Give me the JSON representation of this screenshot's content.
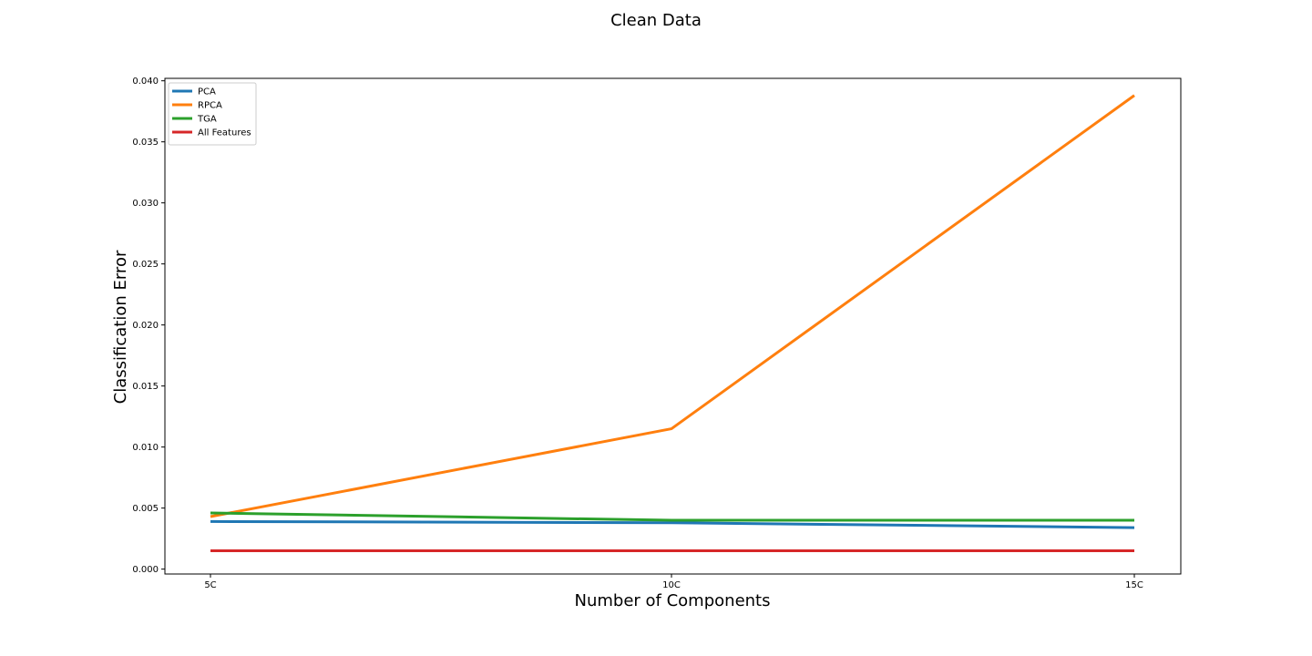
{
  "chart_data": {
    "type": "line",
    "title": "Clean Data",
    "xlabel": "Number of Components",
    "ylabel": "Classification Error",
    "categories": [
      "5C",
      "10C",
      "15C"
    ],
    "ylim": [
      -0.0004,
      0.0402
    ],
    "yticks": [
      "0.000",
      "0.005",
      "0.010",
      "0.015",
      "0.020",
      "0.025",
      "0.030",
      "0.035",
      "0.040"
    ],
    "grid": false,
    "legend_position": "top-left",
    "series": [
      {
        "name": "PCA",
        "color": "#1f77b4",
        "values": [
          0.0039,
          0.0038,
          0.0034
        ]
      },
      {
        "name": "RPCA",
        "color": "#ff7f0e",
        "values": [
          0.0043,
          0.0115,
          0.0388
        ]
      },
      {
        "name": "TGA",
        "color": "#2ca02c",
        "values": [
          0.0046,
          0.004,
          0.004
        ]
      },
      {
        "name": "All Features",
        "color": "#d62728",
        "values": [
          0.0015,
          0.0015,
          0.0015
        ]
      }
    ]
  }
}
